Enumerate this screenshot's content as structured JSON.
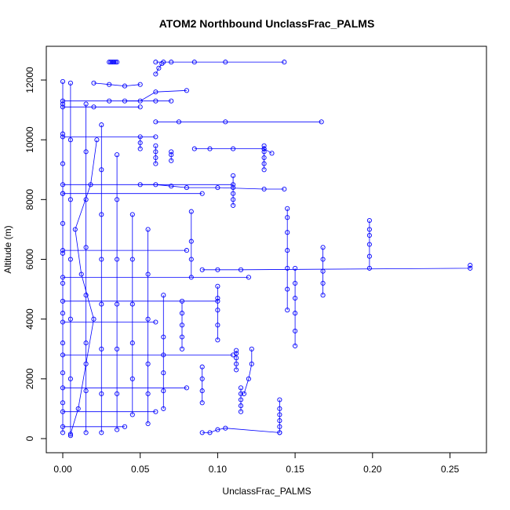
{
  "chart_data": {
    "type": "scatter",
    "title": "ATOM2 Northbound UnclassFrac_PALMS",
    "xlabel": "UnclassFrac_PALMS",
    "ylabel": "Altitude (m)",
    "xlim": [
      0,
      0.27
    ],
    "ylim": [
      0,
      12600
    ],
    "x_ticks": [
      0.0,
      0.05,
      0.1,
      0.15,
      0.2,
      0.25
    ],
    "x_tick_labels": [
      "0.00",
      "0.05",
      "0.10",
      "0.15",
      "0.20",
      "0.25"
    ],
    "y_ticks": [
      0,
      2000,
      4000,
      6000,
      8000,
      10000,
      12000
    ],
    "y_tick_labels": [
      "0",
      "2000",
      "4000",
      "6000",
      "8000",
      "10000",
      "12000"
    ],
    "grid": false,
    "legend": "none",
    "series_color": "#0000ff",
    "marker": "open-circle",
    "connected": true,
    "series": [
      {
        "x": [
          0.0,
          0.0,
          0.0,
          0.0,
          0.0,
          0.0,
          0.0,
          0.0,
          0.0,
          0.0,
          0.0,
          0.0,
          0.0
        ],
        "y": [
          200,
          1200,
          2200,
          3200,
          4200,
          5200,
          6200,
          7200,
          8200,
          9200,
          10200,
          11200,
          11950
        ]
      },
      {
        "x": [
          0.005,
          0.01,
          0.015,
          0.02,
          0.012,
          0.008,
          0.018,
          0.022
        ],
        "y": [
          150,
          1000,
          2500,
          4000,
          5500,
          7000,
          8500,
          10000
        ]
      },
      {
        "x": [
          0.03,
          0.031,
          0.032,
          0.033,
          0.034,
          0.035
        ],
        "y": [
          12600,
          12600,
          12600,
          12600,
          12600,
          12600
        ]
      },
      {
        "x": [
          0.06,
          0.065,
          0.07,
          0.085,
          0.105,
          0.143
        ],
        "y": [
          12600,
          12600,
          12600,
          12600,
          12600,
          12600
        ]
      },
      {
        "x": [
          0.04,
          0.05,
          0.06,
          0.08
        ],
        "y": [
          11300,
          11300,
          11600,
          11650
        ]
      },
      {
        "x": [
          0.06,
          0.075,
          0.105,
          0.167
        ],
        "y": [
          10600,
          10600,
          10600,
          10600
        ]
      },
      {
        "x": [
          0.085,
          0.095,
          0.11,
          0.13,
          0.135
        ],
        "y": [
          9700,
          9700,
          9700,
          9700,
          9550
        ]
      },
      {
        "x": [
          0.05,
          0.06,
          0.07,
          0.08,
          0.1,
          0.13,
          0.143
        ],
        "y": [
          8500,
          8500,
          8450,
          8400,
          8400,
          8350,
          8350
        ]
      },
      {
        "x": [
          0.13,
          0.13,
          0.13,
          0.13,
          0.13,
          0.13
        ],
        "y": [
          9000,
          9200,
          9400,
          9600,
          9700,
          9800
        ]
      },
      {
        "x": [
          0.11,
          0.11,
          0.11,
          0.11,
          0.11
        ],
        "y": [
          7800,
          8000,
          8200,
          8400,
          8800
        ]
      },
      {
        "x": [
          0.145,
          0.145,
          0.145,
          0.145,
          0.145,
          0.145,
          0.145
        ],
        "y": [
          4300,
          5000,
          5700,
          6300,
          6900,
          7400,
          7700
        ]
      },
      {
        "x": [
          0.198,
          0.198,
          0.198,
          0.198,
          0.198,
          0.198
        ],
        "y": [
          5700,
          6100,
          6500,
          6800,
          7000,
          7300
        ]
      },
      {
        "x": [
          0.168,
          0.168,
          0.168,
          0.168,
          0.168
        ],
        "y": [
          4800,
          5200,
          5600,
          6000,
          6400
        ]
      },
      {
        "x": [
          0.15,
          0.15,
          0.15,
          0.15,
          0.15,
          0.15
        ],
        "y": [
          3100,
          3600,
          4200,
          4700,
          5200,
          5700
        ]
      },
      {
        "x": [
          0.09,
          0.1,
          0.115,
          0.263,
          0.263
        ],
        "y": [
          5650,
          5650,
          5650,
          5700,
          5800
        ]
      },
      {
        "x": [
          0.1,
          0.1,
          0.1,
          0.1,
          0.1
        ],
        "y": [
          3300,
          3800,
          4300,
          4700,
          5100
        ]
      },
      {
        "x": [
          0.112,
          0.112,
          0.112,
          0.112,
          0.112
        ],
        "y": [
          2300,
          2500,
          2700,
          2850,
          2950
        ]
      },
      {
        "x": [
          0.117,
          0.12,
          0.122,
          0.122
        ],
        "y": [
          1500,
          2000,
          2500,
          3000
        ]
      },
      {
        "x": [
          0.115,
          0.115,
          0.115,
          0.115,
          0.115
        ],
        "y": [
          900,
          1100,
          1300,
          1500,
          1700
        ]
      },
      {
        "x": [
          0.14,
          0.14,
          0.14,
          0.14,
          0.14,
          0.14
        ],
        "y": [
          200,
          400,
          600,
          800,
          1000,
          1300
        ]
      },
      {
        "x": [
          0.09,
          0.095,
          0.1,
          0.105,
          0.14
        ],
        "y": [
          200,
          200,
          300,
          350,
          200
        ]
      },
      {
        "x": [
          0.077,
          0.077,
          0.077,
          0.077,
          0.077
        ],
        "y": [
          3000,
          3400,
          3800,
          4200,
          4600
        ]
      },
      {
        "x": [
          0.065,
          0.065,
          0.065,
          0.065,
          0.065,
          0.065
        ],
        "y": [
          1000,
          1600,
          2200,
          2800,
          3400,
          4800
        ]
      },
      {
        "x": [
          0.083,
          0.083,
          0.083,
          0.083
        ],
        "y": [
          5400,
          6000,
          6600,
          7600
        ]
      },
      {
        "x": [
          0.09,
          0.09,
          0.09,
          0.09
        ],
        "y": [
          1200,
          1600,
          2000,
          2400
        ]
      },
      {
        "x": [
          0.055,
          0.055,
          0.055,
          0.055,
          0.055,
          0.055
        ],
        "y": [
          500,
          1500,
          2500,
          4000,
          5500,
          7000
        ]
      },
      {
        "x": [
          0.045,
          0.045,
          0.045,
          0.045,
          0.045,
          0.045
        ],
        "y": [
          800,
          2000,
          3200,
          4500,
          6000,
          7500
        ]
      },
      {
        "x": [
          0.035,
          0.035,
          0.035,
          0.035,
          0.035,
          0.035,
          0.035
        ],
        "y": [
          300,
          1500,
          3000,
          4500,
          6000,
          8000,
          9500
        ]
      },
      {
        "x": [
          0.025,
          0.025,
          0.025,
          0.025,
          0.025,
          0.025,
          0.025,
          0.025
        ],
        "y": [
          200,
          1500,
          3000,
          4500,
          6000,
          7500,
          9000,
          10500
        ]
      },
      {
        "x": [
          0.015,
          0.015,
          0.015,
          0.015,
          0.015,
          0.015,
          0.015,
          0.015
        ],
        "y": [
          200,
          1600,
          3200,
          4800,
          6400,
          8000,
          9600,
          11200
        ]
      },
      {
        "x": [
          0.005,
          0.005,
          0.005,
          0.005,
          0.005,
          0.005,
          0.005
        ],
        "y": [
          100,
          2000,
          4000,
          6000,
          8000,
          10000,
          11900
        ]
      },
      {
        "x": [
          0.06,
          0.06,
          0.06,
          0.06
        ],
        "y": [
          9200,
          9400,
          9600,
          9800
        ]
      },
      {
        "x": [
          0.07,
          0.07,
          0.07
        ],
        "y": [
          9300,
          9500,
          9600
        ]
      },
      {
        "x": [
          0.05,
          0.05,
          0.05
        ],
        "y": [
          9700,
          9900,
          10100
        ]
      },
      {
        "x": [
          0.02,
          0.03,
          0.04,
          0.05
        ],
        "y": [
          11900,
          11850,
          11800,
          11850
        ]
      },
      {
        "x": [
          0.06,
          0.062,
          0.064
        ],
        "y": [
          12200,
          12400,
          12550
        ]
      },
      {
        "x": [
          0.0,
          0.02,
          0.05
        ],
        "y": [
          11100,
          11100,
          11100
        ]
      },
      {
        "x": [
          0.0,
          0.03,
          0.06,
          0.07
        ],
        "y": [
          11300,
          11300,
          11300,
          11300
        ]
      },
      {
        "x": [
          0.0,
          0.06
        ],
        "y": [
          10100,
          10100
        ]
      },
      {
        "x": [
          0.0,
          0.11
        ],
        "y": [
          8500,
          8500
        ]
      },
      {
        "x": [
          0.0,
          0.09
        ],
        "y": [
          8200,
          8200
        ]
      },
      {
        "x": [
          0.0,
          0.08
        ],
        "y": [
          6300,
          6300
        ]
      },
      {
        "x": [
          0.0,
          0.12
        ],
        "y": [
          5400,
          5400
        ]
      },
      {
        "x": [
          0.0,
          0.1
        ],
        "y": [
          4600,
          4600
        ]
      },
      {
        "x": [
          0.0,
          0.06
        ],
        "y": [
          3900,
          3900
        ]
      },
      {
        "x": [
          0.0,
          0.11
        ],
        "y": [
          2800,
          2800
        ]
      },
      {
        "x": [
          0.0,
          0.08
        ],
        "y": [
          1700,
          1700
        ]
      },
      {
        "x": [
          0.0,
          0.06
        ],
        "y": [
          900,
          900
        ]
      },
      {
        "x": [
          0.0,
          0.04
        ],
        "y": [
          400,
          400
        ]
      }
    ]
  }
}
